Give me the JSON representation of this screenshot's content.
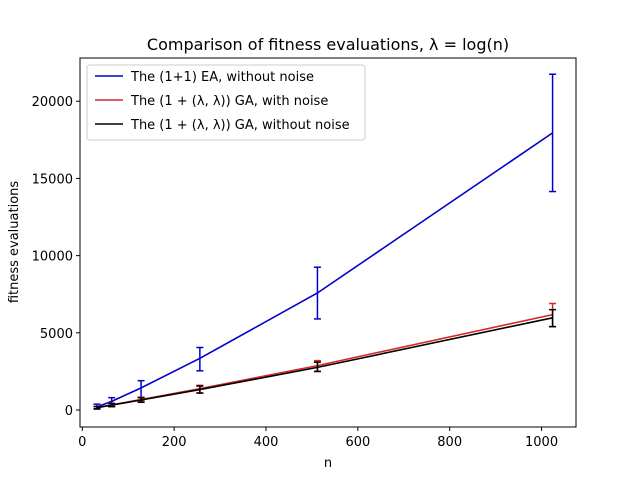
{
  "chart_data": {
    "type": "line",
    "title": "Comparison of fitness evaluations, λ = log(n)",
    "xlabel": "n",
    "ylabel": "fitness evaluations",
    "xlim": [
      -5,
      1075
    ],
    "ylim": [
      -1100,
      22800
    ],
    "xticks": [
      0,
      200,
      400,
      600,
      800,
      1000
    ],
    "yticks": [
      0,
      5000,
      10000,
      15000,
      20000
    ],
    "grid": false,
    "legend_position": "top-left",
    "series": [
      {
        "name": "The (1+1) EA, without noise",
        "color": "#0000cc",
        "x": [
          32,
          64,
          128,
          256,
          512,
          1024
        ],
        "y": [
          200,
          560,
          1430,
          3350,
          7580,
          17950
        ],
        "yerr_low": [
          60,
          220,
          640,
          2540,
          5900,
          14150
        ],
        "yerr_high": [
          380,
          800,
          1900,
          4050,
          9250,
          21750
        ]
      },
      {
        "name": "The (1 + (λ, λ)) GA, with noise",
        "color": "#d62728",
        "x": [
          32,
          64,
          128,
          256,
          512,
          1024
        ],
        "y": [
          160,
          330,
          680,
          1380,
          2880,
          6180
        ],
        "yerr_low": [
          80,
          230,
          530,
          1100,
          2500,
          5400
        ],
        "yerr_high": [
          240,
          440,
          830,
          1600,
          3200,
          6900
        ]
      },
      {
        "name": "The (1 + (λ, λ)) GA, without noise",
        "color": "#000000",
        "x": [
          32,
          64,
          128,
          256,
          512,
          1024
        ],
        "y": [
          150,
          320,
          650,
          1320,
          2760,
          5970
        ],
        "yerr_low": [
          80,
          220,
          500,
          1100,
          2500,
          5400
        ],
        "yerr_high": [
          220,
          420,
          800,
          1550,
          3100,
          6500
        ]
      }
    ]
  }
}
